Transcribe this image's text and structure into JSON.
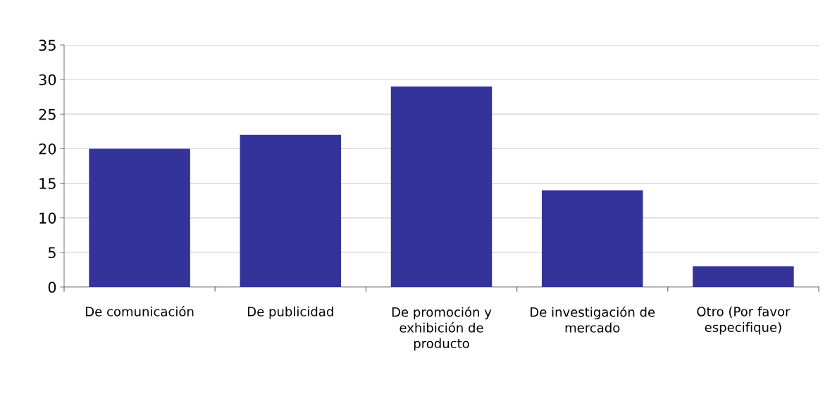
{
  "chart_data": {
    "type": "bar",
    "categories": [
      "De comunicación",
      "De publicidad",
      "De promoción y\nexhibición de\nproducto",
      "De investigación de\nmercado",
      "Otro (Por favor\nespecifique)"
    ],
    "values": [
      20,
      22,
      29,
      14,
      3
    ],
    "color": "#333399",
    "ylim": [
      0,
      35
    ],
    "yticks": [
      0,
      5,
      10,
      15,
      20,
      25,
      30,
      35
    ],
    "grid": "y",
    "legend": false
  }
}
